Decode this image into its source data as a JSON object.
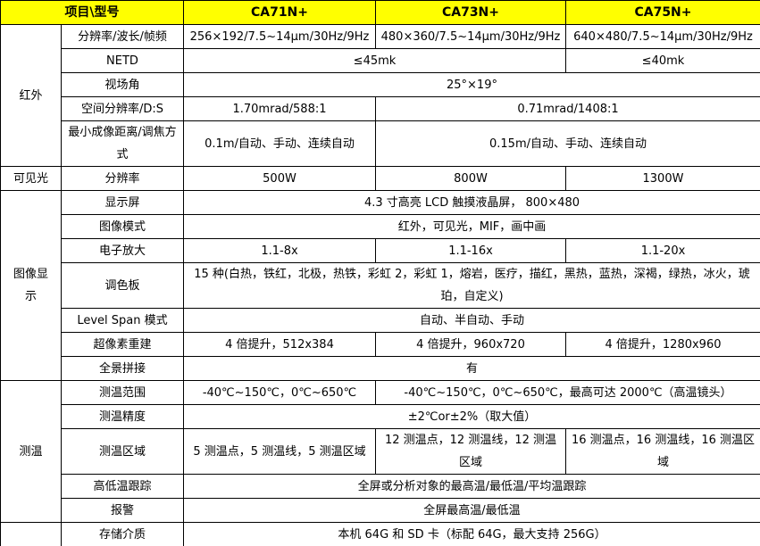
{
  "colors": {
    "header_bg": "#FFFF00",
    "border": "#000000",
    "text": "#000000",
    "body_bg": "#FFFFFF"
  },
  "table": {
    "header": {
      "title": "项目\\型号",
      "models": [
        "CA71N+",
        "CA73N+",
        "CA75N+"
      ]
    },
    "rows": [
      {
        "group": {
          "label": "红外",
          "rowspan": 5
        },
        "param": "分辨率/波长/帧频",
        "values": [
          {
            "text": "256×192/7.5~14μm/30Hz/9Hz",
            "colspan": 1
          },
          {
            "text": "480×360/7.5~14μm/30Hz/9Hz",
            "colspan": 1
          },
          {
            "text": "640×480/7.5~14μm/30Hz/9Hz",
            "colspan": 1
          }
        ]
      },
      {
        "param": "NETD",
        "values": [
          {
            "text": "≤45mk",
            "colspan": 2
          },
          {
            "text": "≤40mk",
            "colspan": 1
          }
        ]
      },
      {
        "param": "视场角",
        "values": [
          {
            "text": "25°×19°",
            "colspan": 3
          }
        ]
      },
      {
        "param": "空间分辨率/D:S",
        "values": [
          {
            "text": "1.70mrad/588:1",
            "colspan": 1
          },
          {
            "text": "0.71mrad/1408:1",
            "colspan": 2
          }
        ]
      },
      {
        "param": "最小成像距离/调焦方式",
        "values": [
          {
            "text": "0.1m/自动、手动、连续自动",
            "colspan": 1
          },
          {
            "text": "0.15m/自动、手动、连续自动",
            "colspan": 2
          }
        ]
      },
      {
        "group": {
          "label": "可见光",
          "rowspan": 1
        },
        "param": "分辨率",
        "values": [
          {
            "text": "500W",
            "colspan": 1
          },
          {
            "text": "800W",
            "colspan": 1
          },
          {
            "text": "1300W",
            "colspan": 1
          }
        ]
      },
      {
        "group": {
          "label": "图像显示",
          "rowspan": 7
        },
        "param": "显示屏",
        "values": [
          {
            "text": "4.3 寸高亮 LCD 触摸液晶屏， 800×480",
            "colspan": 3
          }
        ]
      },
      {
        "param": "图像模式",
        "values": [
          {
            "text": "红外，可见光，MIF，画中画",
            "colspan": 3
          }
        ]
      },
      {
        "param": "电子放大",
        "values": [
          {
            "text": "1.1-8x",
            "colspan": 1
          },
          {
            "text": "1.1-16x",
            "colspan": 1
          },
          {
            "text": "1.1-20x",
            "colspan": 1
          }
        ]
      },
      {
        "param": "调色板",
        "values": [
          {
            "text": "15 种(白热，铁红，北极，热铁，彩虹 2，彩虹 1，熔岩，医疗，描红，黑热，蓝热，深褐，绿热，冰火，琥珀，自定义)",
            "colspan": 3
          }
        ]
      },
      {
        "param": "Level Span 模式",
        "values": [
          {
            "text": "自动、半自动、手动",
            "colspan": 3
          }
        ]
      },
      {
        "param": "超像素重建",
        "values": [
          {
            "text": "4 倍提升，512x384",
            "colspan": 1
          },
          {
            "text": "4 倍提升，960x720",
            "colspan": 1
          },
          {
            "text": "4 倍提升，1280x960",
            "colspan": 1
          }
        ]
      },
      {
        "param": "全景拼接",
        "values": [
          {
            "text": "有",
            "colspan": 3
          }
        ]
      },
      {
        "group": {
          "label": "测温",
          "rowspan": 5
        },
        "param": "测温范围",
        "values": [
          {
            "text": "-40℃~150℃，0℃~650℃",
            "colspan": 1
          },
          {
            "text": "-40℃~150℃，0℃~650℃，最高可达 2000℃（高温镜头）",
            "colspan": 2
          }
        ]
      },
      {
        "param": "测温精度",
        "values": [
          {
            "text": "±2℃or±2%（取大值）",
            "colspan": 3
          }
        ]
      },
      {
        "param": "测温区域",
        "values": [
          {
            "text": "5 测温点，5 测温线，5 测温区域",
            "colspan": 1
          },
          {
            "text": "12 测温点，12 测温线，12 测温区域",
            "colspan": 1
          },
          {
            "text": "16 测温点，16 测温线，16 测温区域",
            "colspan": 1
          }
        ]
      },
      {
        "param": "高低温跟踪",
        "values": [
          {
            "text": "全屏或分析对象的最高温/最低温/平均温跟踪",
            "colspan": 3
          }
        ]
      },
      {
        "param": "报警",
        "values": [
          {
            "text": "全屏最高温/最低温",
            "colspan": 3
          }
        ]
      },
      {
        "group": {
          "label": "",
          "rowspan": 1
        },
        "param": "存储介质",
        "values": [
          {
            "text": "本机 64G 和 SD 卡（标配 64G，最大支持 256G）",
            "colspan": 3
          }
        ]
      }
    ]
  }
}
